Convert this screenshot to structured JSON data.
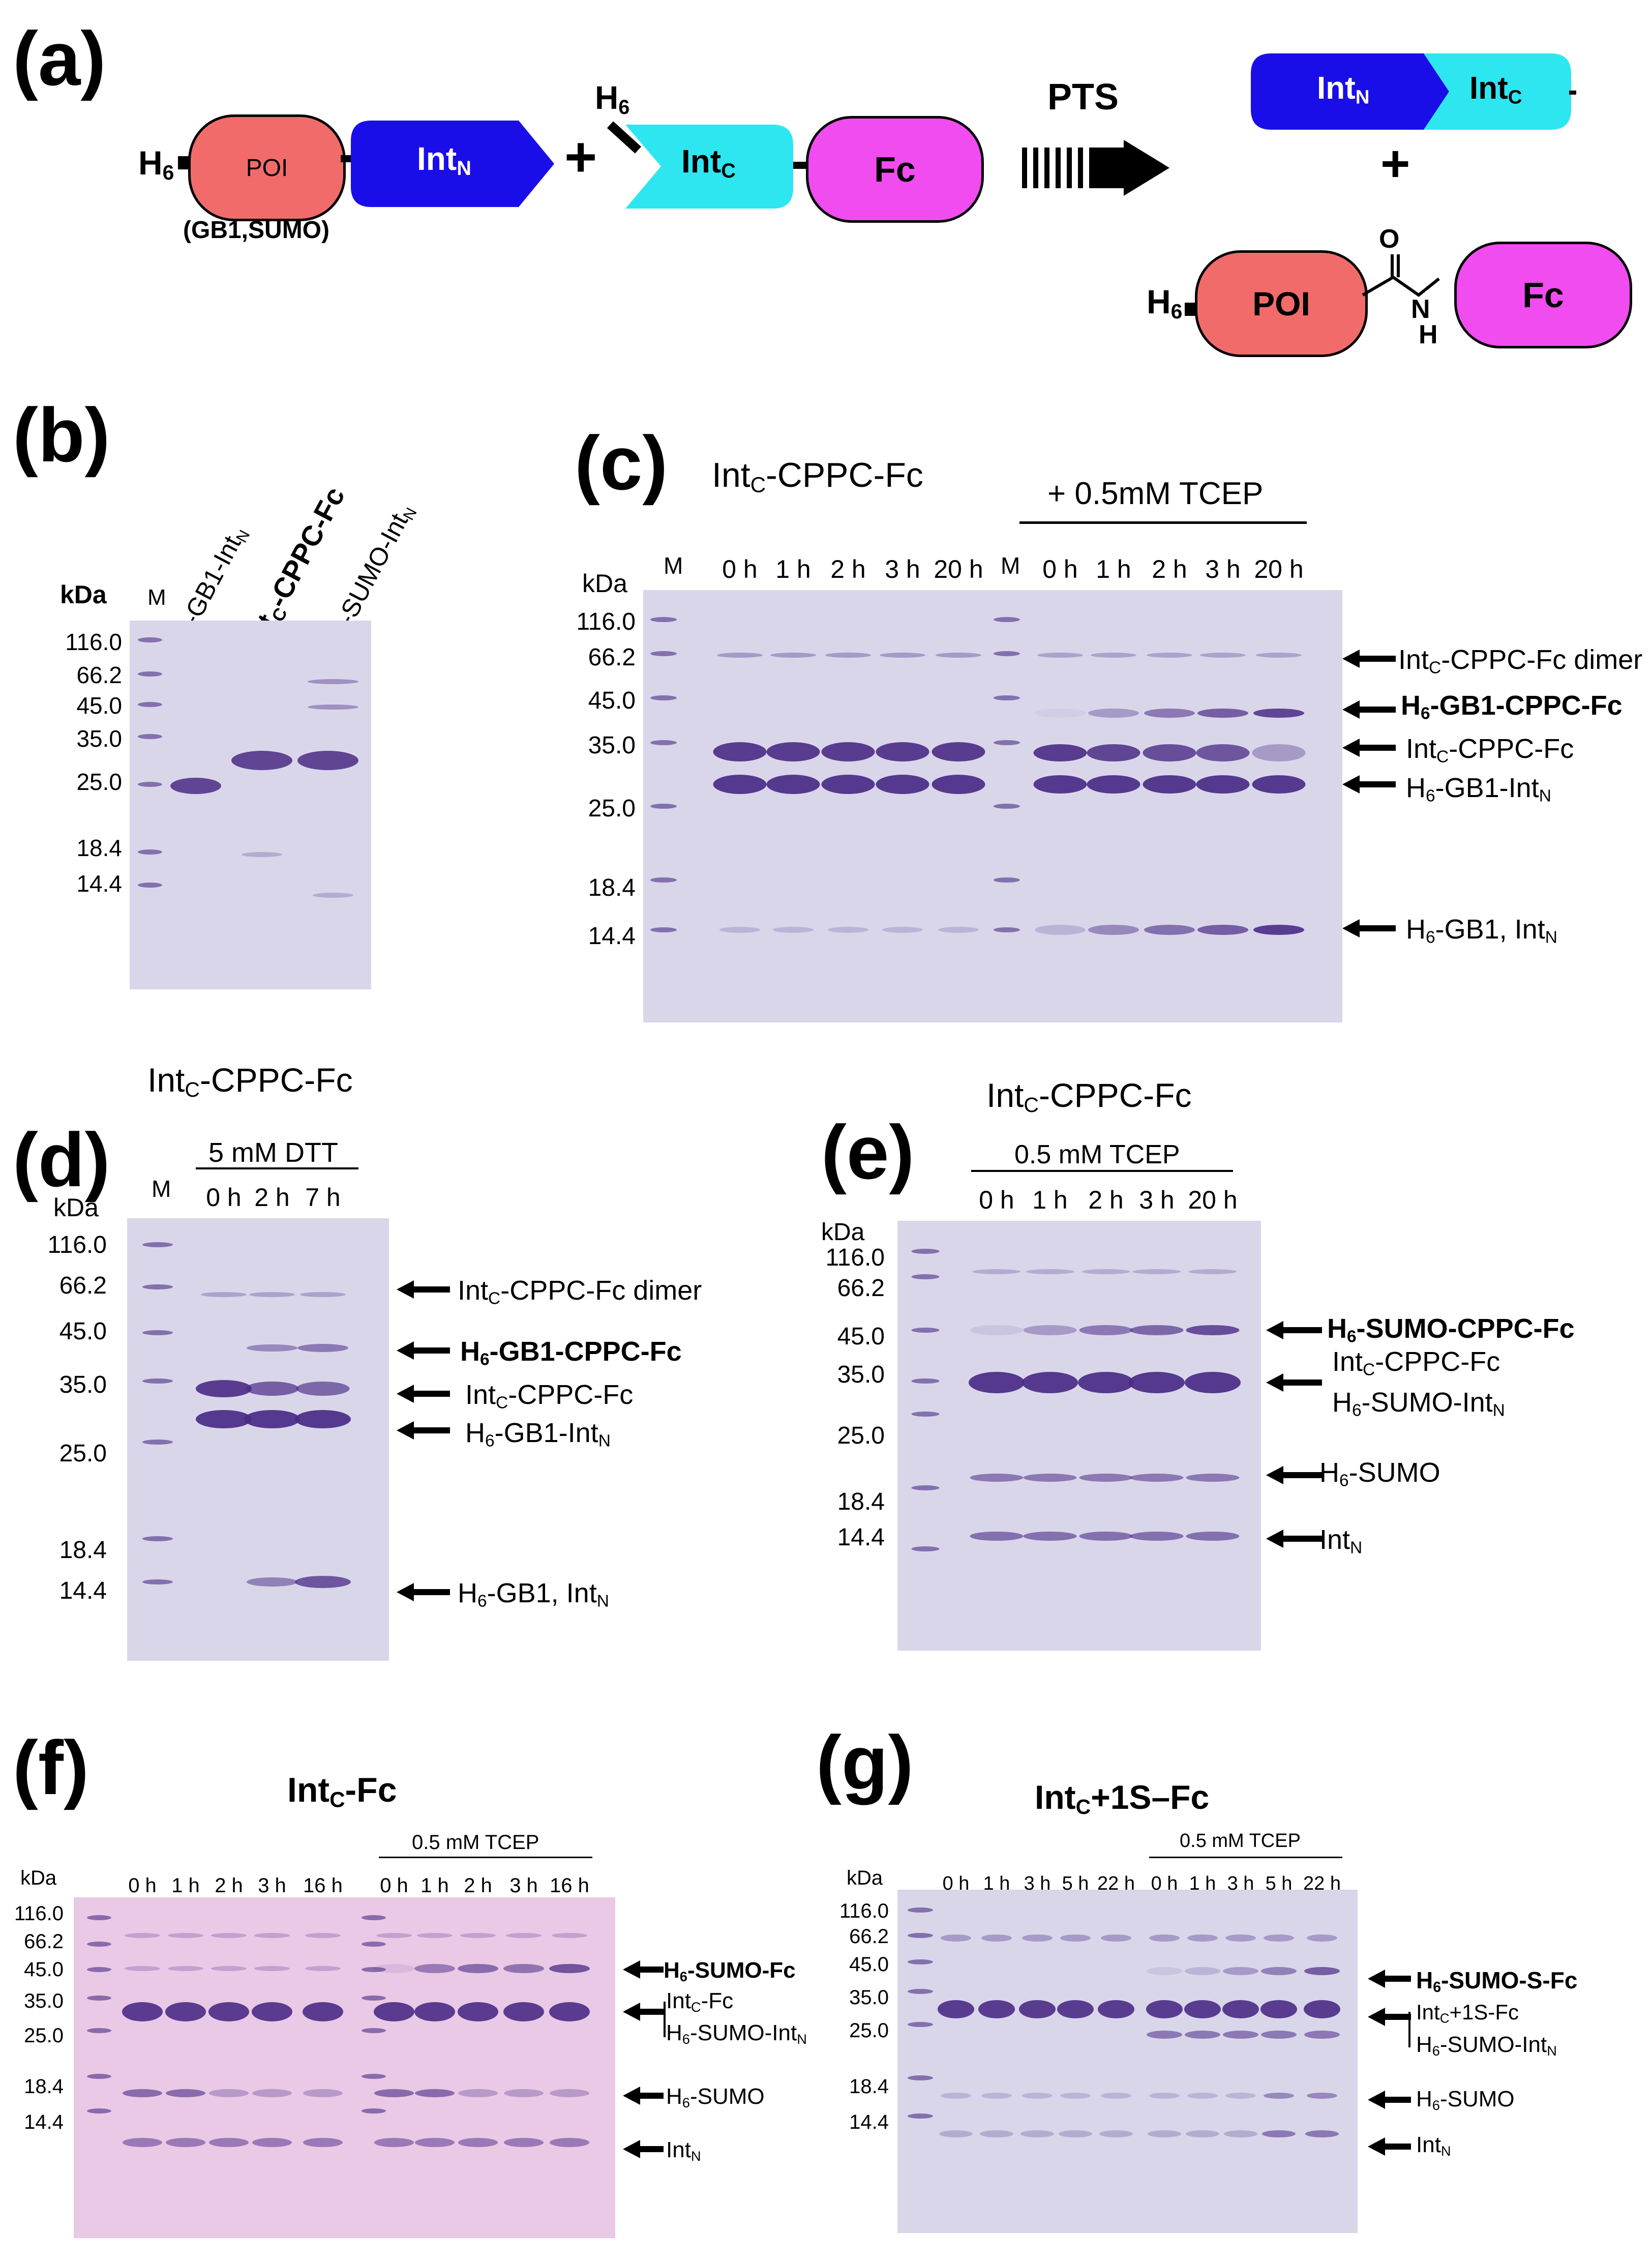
{
  "panel_a": {
    "label": "(a)",
    "h6": "H",
    "h6_sub": "6",
    "poi": "POI",
    "poi_note": "(GB1,SUMO)",
    "intn": "Int",
    "intn_sub": "N",
    "plus": "+",
    "intc": "Int",
    "intc_sub": "C",
    "fc": "Fc",
    "pts": "PTS",
    "o": "O",
    "n": "N",
    "h": "H"
  },
  "panel_b": {
    "label": "(b)",
    "kda": "kDa",
    "m": "M",
    "markers": [
      "116.0",
      "66.2",
      "45.0",
      "35.0",
      "25.0",
      "18.4",
      "14.4"
    ],
    "lane1": "H",
    "lane1_rest": "-GB1-Int",
    "lane2": "Int",
    "lane2_rest": "-CPPC-Fc",
    "lane3": "H",
    "lane3_rest": "-SUMO-Int"
  },
  "panel_c": {
    "label": "(c)",
    "title": "Int",
    "title_rest": "-CPPC-Fc",
    "tcep": "+ 0.5mM TCEP",
    "kda": "kDa",
    "m": "M",
    "lanes": [
      "0 h",
      "1 h",
      "2 h",
      "3 h",
      "20 h"
    ],
    "markers": [
      "116.0",
      "66.2",
      "45.0",
      "35.0",
      "25.0",
      "18.4",
      "14.4"
    ],
    "ann_dimer": "Int",
    "ann_dimer_rest": "-CPPC-Fc dimer",
    "ann_product": "H",
    "ann_product_rest": "-GB1-CPPC-Fc",
    "ann_intc": "Int",
    "ann_intc_rest": "-CPPC-Fc",
    "ann_gb1intn": "H",
    "ann_gb1intn_rest": "-GB1-Int",
    "ann_gb1": "H",
    "ann_gb1_rest": "-GB1, Int"
  },
  "panel_d": {
    "label": "(d)",
    "title": "Int",
    "title_rest": "-CPPC-Fc",
    "dtt": "5 mM DTT",
    "kda": "kDa",
    "m": "M",
    "lanes": [
      "0 h",
      "2 h",
      "7 h"
    ],
    "markers": [
      "116.0",
      "66.2",
      "45.0",
      "35.0",
      "25.0",
      "18.4",
      "14.4"
    ]
  },
  "panel_e": {
    "label": "(e)",
    "title": "Int",
    "title_rest": "-CPPC-Fc",
    "tcep": "0.5 mM TCEP",
    "kda": "kDa",
    "lanes": [
      "0 h",
      "1 h",
      "2 h",
      "3 h",
      "20 h"
    ],
    "markers": [
      "116.0",
      "66.2",
      "45.0",
      "35.0",
      "25.0",
      "18.4",
      "14.4"
    ],
    "ann_product": "H",
    "ann_product_rest": "-SUMO-CPPC-Fc",
    "ann_sumointn": "H",
    "ann_sumointn_rest": "-SUMO-Int",
    "ann_sumo": "H",
    "ann_sumo_rest": "-SUMO",
    "ann_intn": "Int"
  },
  "panel_f": {
    "label": "(f)",
    "title": "Int",
    "title_rest": "-Fc",
    "tcep": "0.5 mM TCEP",
    "kda": "kDa",
    "lanes": [
      "0 h",
      "1 h",
      "2 h",
      "3 h",
      "16 h",
      "0 h",
      "1 h",
      "2 h",
      "3 h",
      "16 h"
    ],
    "markers": [
      "116.0",
      "66.2",
      "45.0",
      "35.0",
      "25.0",
      "18.4",
      "14.4"
    ],
    "ann_product": "H",
    "ann_product_rest": "-SUMO-Fc",
    "ann_intcfc": "Int",
    "ann_intcfc_rest": "-Fc"
  },
  "panel_g": {
    "label": "(g)",
    "title": "Int",
    "title_rest": "+1S–Fc",
    "tcep": "0.5 mM TCEP",
    "kda": "kDa",
    "lanes": [
      "0 h",
      "1 h",
      "3 h",
      "5 h",
      "22 h",
      "0 h",
      "1 h",
      "3 h",
      "5 h",
      "22 h"
    ],
    "markers": [
      "116.0",
      "66.2",
      "45.0",
      "35.0",
      "25.0",
      "18.4",
      "14.4"
    ],
    "ann_product": "H",
    "ann_product_rest": "-SUMO-S-Fc",
    "ann_intc1s": "Int",
    "ann_intc1s_rest": "+1S-Fc"
  },
  "colors": {
    "poi": "#f26b6b",
    "intn": "#1a0ee8",
    "intc": "#2ee6f0",
    "fc": "#f04cf0",
    "gel": "#d9d6ea",
    "band": "#4a2b86",
    "gel_pink": "#e9c9e6"
  }
}
